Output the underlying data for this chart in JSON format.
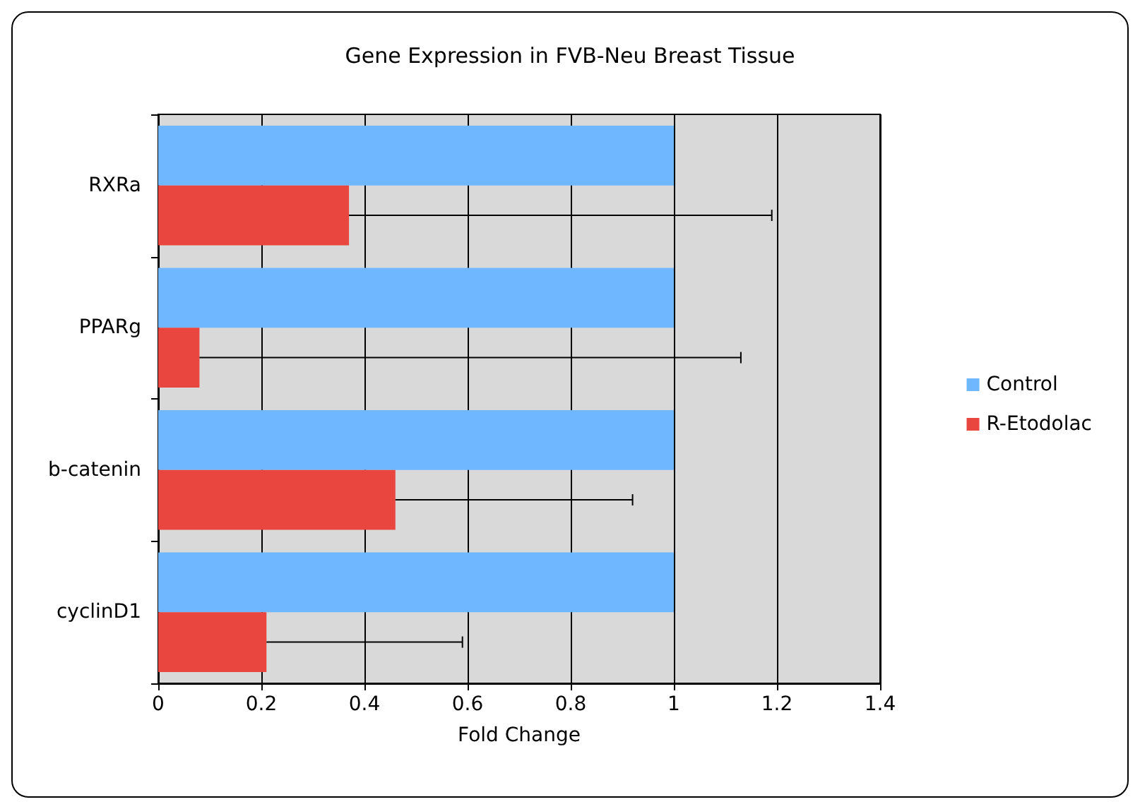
{
  "chart_data": {
    "type": "bar",
    "orientation": "horizontal",
    "title": "Gene Expression in FVB-Neu Breast Tissue",
    "xlabel": "Fold Change",
    "categories": [
      "RXRa",
      "PPARg",
      "b-catenin",
      "cyclinD1"
    ],
    "series": [
      {
        "name": "Control",
        "color": "#6fb7ff",
        "values": [
          1,
          1,
          1,
          1
        ]
      },
      {
        "name": "R-Etodolac",
        "color": "#e8463f",
        "values": [
          0.37,
          0.08,
          0.46,
          0.21
        ],
        "errors": [
          [
            0.37,
            1.19
          ],
          [
            0.08,
            1.13
          ],
          [
            0.46,
            0.92
          ],
          [
            0.21,
            0.59
          ]
        ]
      }
    ],
    "xlim": [
      0,
      1.4
    ],
    "xticks": [
      0,
      0.2,
      0.4,
      0.6,
      0.8,
      1,
      1.2,
      1.4
    ],
    "grid": "x",
    "legend": "right"
  }
}
